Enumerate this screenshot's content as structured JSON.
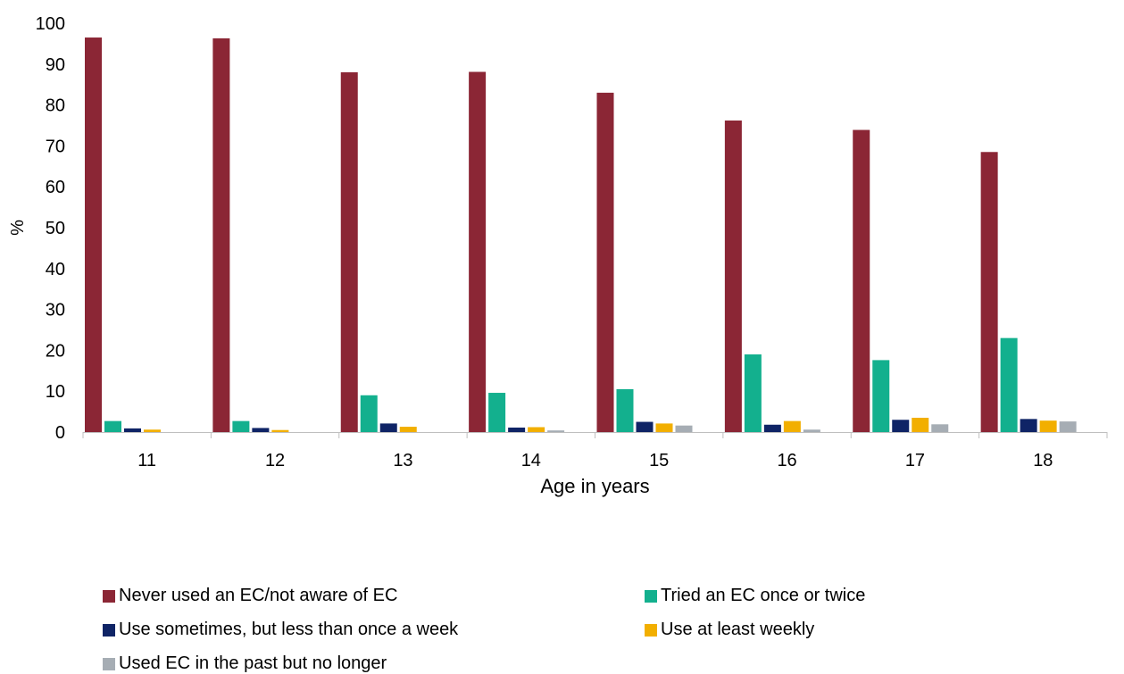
{
  "chart_data": {
    "type": "bar",
    "xlabel": "Age in years",
    "ylabel": "%",
    "ylim": [
      0,
      100
    ],
    "yticks": [
      0,
      10,
      20,
      30,
      40,
      50,
      60,
      70,
      80,
      90,
      100
    ],
    "grid": false,
    "legend_position": "bottom",
    "categories": [
      "11",
      "12",
      "13",
      "14",
      "15",
      "16",
      "17",
      "18"
    ],
    "series": [
      {
        "name": "Never used an EC/not aware of EC",
        "color": "#8B2635",
        "values": [
          96.5,
          96.3,
          88.0,
          88.1,
          83.0,
          76.2,
          73.9,
          68.5
        ]
      },
      {
        "name": "Tried an EC once or twice",
        "color": "#13B08E",
        "values": [
          2.7,
          2.7,
          9.0,
          9.6,
          10.5,
          19.0,
          17.6,
          23.0
        ]
      },
      {
        "name": "Use sometimes, but less than once a week",
        "color": "#0F2466",
        "values": [
          0.9,
          1.0,
          2.1,
          1.1,
          2.5,
          1.8,
          3.0,
          3.2
        ]
      },
      {
        "name": "Use at least weekly",
        "color": "#F2AF00",
        "values": [
          0.6,
          0.5,
          1.3,
          1.2,
          2.1,
          2.7,
          3.5,
          2.8
        ]
      },
      {
        "name": "Used EC in the past but no longer",
        "color": "#A6ADB4",
        "values": [
          0.0,
          0.0,
          0.0,
          0.4,
          1.6,
          0.6,
          1.9,
          2.6
        ]
      }
    ]
  }
}
